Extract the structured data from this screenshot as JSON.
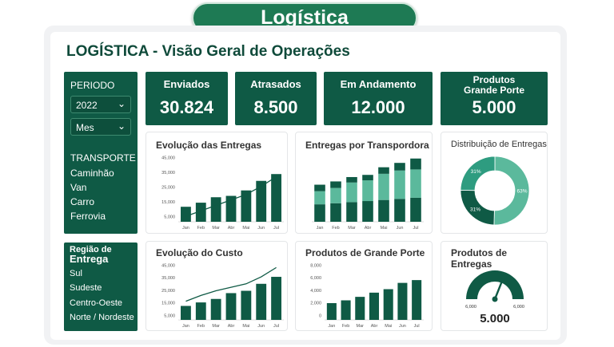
{
  "header": {
    "title": "Logística"
  },
  "dashboard": {
    "title": "LOGÍSTICA - Visão Geral de Operações"
  },
  "filters": {
    "period_label": "PERIODO",
    "year_value": "2022",
    "month_value": "Mes",
    "transport_label": "TRANSPORTE",
    "transport_items": [
      "Caminhão",
      "Van",
      "Carro",
      "Ferrovia"
    ],
    "region_label_1": "Região de",
    "region_label_2": "Entrega",
    "region_items": [
      "Sul",
      "Sudeste",
      "Centro-Oeste",
      "Norte / Nordeste"
    ]
  },
  "kpis": [
    {
      "label": "Enviados",
      "value": "30.824"
    },
    {
      "label": "Atrasados",
      "value": "8.500"
    },
    {
      "label": "Em Andamento",
      "value": "12.000"
    },
    {
      "label": "Produtos Grande Porte",
      "value": "5.000"
    }
  ],
  "colors": {
    "dark_green": "#0f5a45",
    "mid_green": "#2e9c80",
    "light_green": "#5bb99c"
  },
  "chart_data": [
    {
      "type": "bar",
      "title": "Evolução das Entregas",
      "categories": [
        "Jan",
        "Feb",
        "Mar",
        "Abr",
        "Mai",
        "Jun",
        "Jul"
      ],
      "values": [
        11000,
        14000,
        18000,
        19000,
        23000,
        30000,
        35000
      ],
      "trend": [
        4000,
        8000,
        12000,
        16000,
        20000,
        26000,
        33000
      ],
      "yticks": [
        "45,000",
        "35,000",
        "25,000",
        "15,000",
        "5,000"
      ],
      "ylim": [
        0,
        48000
      ]
    },
    {
      "type": "bar",
      "title": "Entregas por Transpordora",
      "categories": [
        "Jan",
        "Feb",
        "Mar",
        "Abr",
        "Mai",
        "Jun",
        "Jul"
      ],
      "series": [
        {
          "values": [
            16,
            17,
            18,
            19,
            20,
            21,
            22
          ]
        },
        {
          "values": [
            12,
            14,
            18,
            19,
            24,
            26,
            26
          ]
        },
        {
          "values": [
            6,
            6,
            5,
            5,
            6,
            7,
            10
          ]
        }
      ],
      "ylim": [
        0,
        60
      ]
    },
    {
      "type": "pie",
      "title": "Distribuição de Entregas",
      "slices": [
        {
          "value": 63,
          "label": "63%"
        },
        {
          "value": 31,
          "label": "31%"
        },
        {
          "value": 31,
          "label": "31%"
        }
      ]
    },
    {
      "type": "bar",
      "title": "Evolução do Custo",
      "categories": [
        "Jan",
        "Feb",
        "Mar",
        "Abr",
        "Mai",
        "Jun",
        "Jul"
      ],
      "values": [
        12000,
        15000,
        18000,
        23000,
        25000,
        31000,
        37000
      ],
      "trend": [
        16000,
        21000,
        25000,
        28000,
        31000,
        37000,
        45000
      ],
      "yticks": [
        "45,000",
        "35,000",
        "25,000",
        "15,000",
        "5,000"
      ],
      "ylim": [
        0,
        48000
      ]
    },
    {
      "type": "bar",
      "title": "Produtos de Grande Porte",
      "categories": [
        "Jan",
        "Feb",
        "Mar",
        "Abr",
        "Mai",
        "Jun",
        "Jul"
      ],
      "values": [
        2400,
        2800,
        3300,
        3900,
        4400,
        5300,
        5700
      ],
      "yticks": [
        "8,000",
        "6,000",
        "4,000",
        "2,000",
        "0"
      ],
      "ylim": [
        0,
        8000
      ]
    },
    {
      "type": "gauge",
      "title": "Produtos de Entregas",
      "value": "5.000",
      "min_label": "6,000",
      "max_label": "6,000",
      "fraction": 0.62
    }
  ]
}
